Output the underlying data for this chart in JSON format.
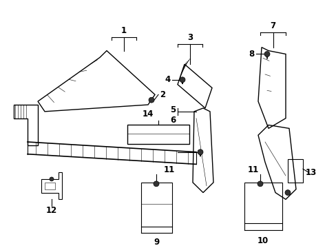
{
  "background_color": "#ffffff",
  "fig_width": 4.89,
  "fig_height": 3.6,
  "dpi": 100,
  "line_color": "#000000",
  "text_color": "#000000",
  "part_fontsize": 8.5
}
